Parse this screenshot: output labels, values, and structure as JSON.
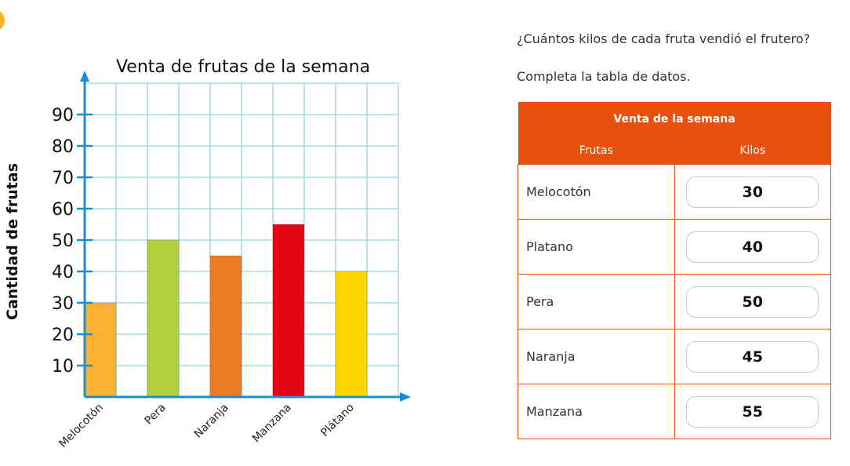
{
  "chart_data": {
    "type": "bar",
    "title": "Venta de frutas de la semana",
    "xlabel": "",
    "ylabel": "Cantidad de frutas",
    "categories": [
      "Melocotón",
      "Pera",
      "Naranja",
      "Manzana",
      "Plátano"
    ],
    "values": [
      30,
      50,
      45,
      55,
      40
    ],
    "colors": [
      "#f9b233",
      "#b2cf3d",
      "#eb7b25",
      "#e30613",
      "#ffd500"
    ],
    "yticks": [
      10,
      20,
      30,
      40,
      50,
      60,
      70,
      80,
      90
    ],
    "ylim": [
      0,
      100
    ],
    "grid": true,
    "grid_color": "#8ed3ea",
    "axis_color": "#1a8fd8"
  },
  "question": "¿Cuántos kilos de cada fruta vendió el frutero?",
  "instruction": "Completa la tabla de datos.",
  "table": {
    "title": "Venta de la semana",
    "col_fruit": "Frutas",
    "col_kilos": "Kilos",
    "rows": [
      {
        "fruit": "Melocotón",
        "kilos": "30"
      },
      {
        "fruit": "Platano",
        "kilos": "40"
      },
      {
        "fruit": "Pera",
        "kilos": "50"
      },
      {
        "fruit": "Naranja",
        "kilos": "45"
      },
      {
        "fruit": "Manzana",
        "kilos": "55"
      }
    ],
    "accent_color": "#e8500e"
  }
}
